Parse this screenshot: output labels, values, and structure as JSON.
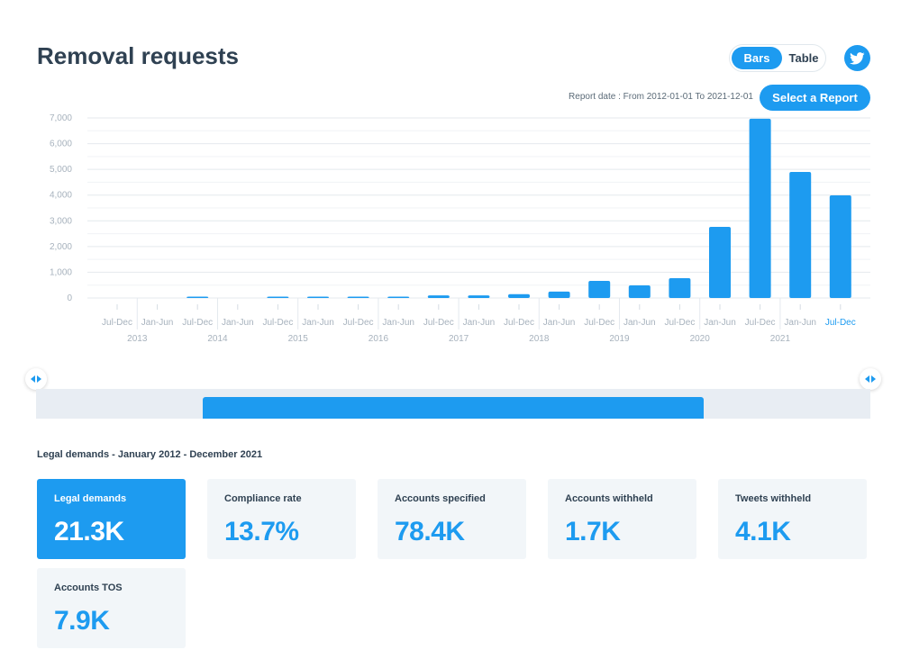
{
  "header": {
    "title": "Removal requests"
  },
  "view_toggle": {
    "options": [
      "Bars",
      "Table"
    ],
    "selected": "Bars"
  },
  "share": {
    "icon": "twitter-bird-icon"
  },
  "report": {
    "date_text": "Report date : From 2012-01-01 To 2021-12-01",
    "select_label": "Select a Report"
  },
  "colors": {
    "accent": "#1d9bf0",
    "text": "#2f4152",
    "card_bg": "#f2f6f9"
  },
  "chart_data": {
    "type": "bar",
    "categories": [
      "Jul-Dec",
      "Jan-Jun",
      "Jul-Dec",
      "Jan-Jun",
      "Jul-Dec",
      "Jan-Jun",
      "Jul-Dec",
      "Jan-Jun",
      "Jul-Dec",
      "Jan-Jun",
      "Jul-Dec",
      "Jan-Jun",
      "Jul-Dec",
      "Jan-Jun",
      "Jul-Dec",
      "Jan-Jun",
      "Jul-Dec",
      "Jan-Jun",
      "Jul-Dec"
    ],
    "year_labels": [
      "2013",
      "2014",
      "2015",
      "2016",
      "2017",
      "2018",
      "2019",
      "2020",
      "2021"
    ],
    "values": [
      0,
      0,
      10,
      0,
      10,
      30,
      40,
      40,
      100,
      100,
      150,
      250,
      665,
      490,
      770,
      2765,
      6970,
      4900,
      3990
    ],
    "highlighted_category_index": 18,
    "ylim": [
      0,
      7000
    ],
    "yticks": [
      "0",
      "1,000",
      "2,000",
      "3,000",
      "4,000",
      "5,000",
      "6,000",
      "7,000"
    ],
    "grid": true,
    "xlabel": "",
    "ylabel": "",
    "title": ""
  },
  "range_slider": {
    "start_fraction": 0.2,
    "end_fraction": 0.8
  },
  "summary": {
    "title": "Legal demands - January 2012 - December 2021",
    "cards": [
      {
        "label": "Legal demands",
        "value": "21.3K",
        "active": true
      },
      {
        "label": "Compliance rate",
        "value": "13.7%"
      },
      {
        "label": "Accounts specified",
        "value": "78.4K"
      },
      {
        "label": "Accounts withheld",
        "value": "1.7K"
      },
      {
        "label": "Tweets withheld",
        "value": "4.1K"
      },
      {
        "label": "Accounts TOS",
        "value": "7.9K"
      }
    ]
  }
}
